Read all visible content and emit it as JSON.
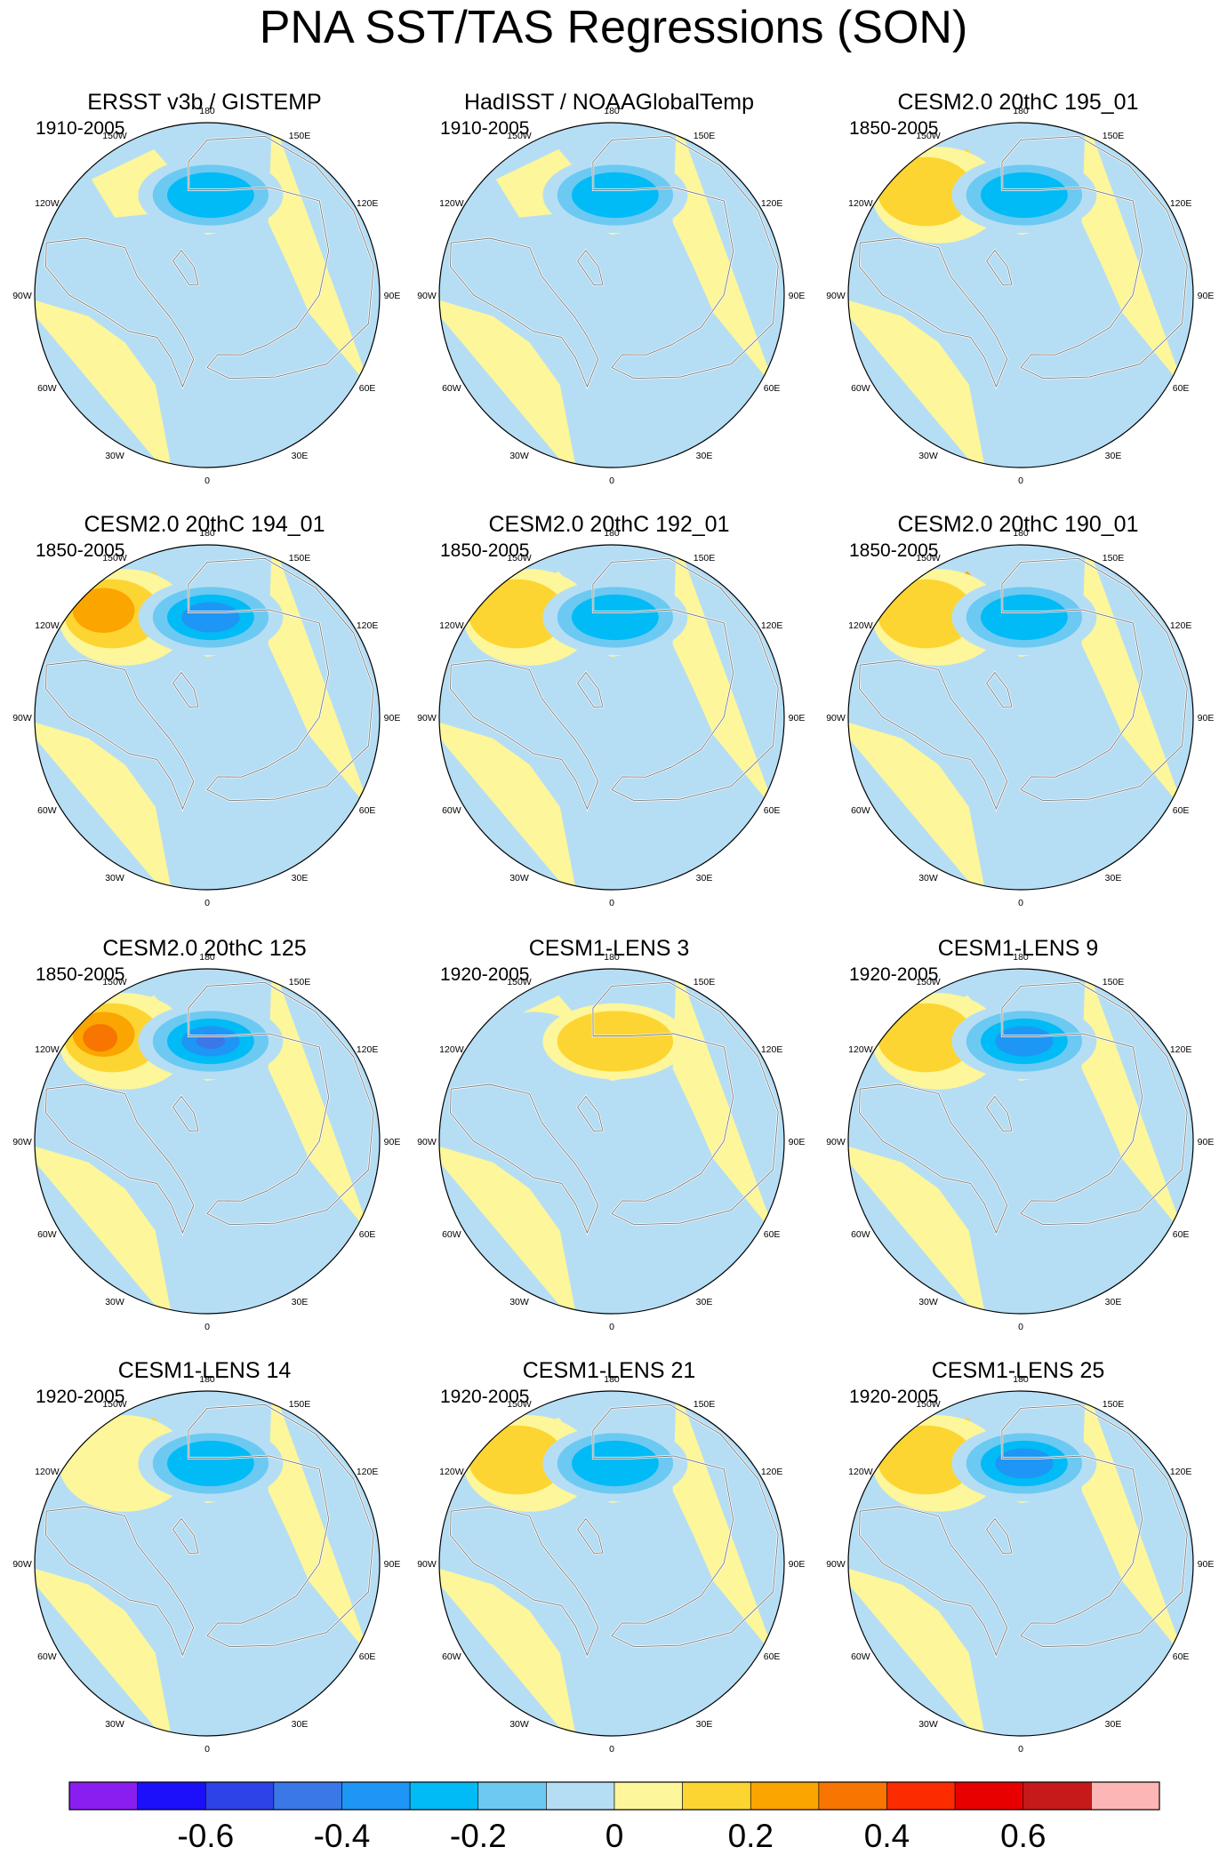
{
  "title": "PNA SST/TAS Regressions (SON)",
  "palette": [
    "#8a1ef0",
    "#1c0ffa",
    "#2d43e8",
    "#3a78e8",
    "#1e96f5",
    "#00bbf5",
    "#6cc9f2",
    "#b5def5",
    "#fdf69a",
    "#fdd532",
    "#fba500",
    "#f77500",
    "#fc2b00",
    "#e80000",
    "#c61a1a",
    "#fdb6b6"
  ],
  "colorbar_labels": [
    "-0.6",
    "-0.4",
    "-0.2",
    "0",
    "0.2",
    "0.4",
    "0.6"
  ],
  "lon_labels": [
    "180",
    "150E",
    "120E",
    "90E",
    "60E",
    "30E",
    "0",
    "30W",
    "60W",
    "90W",
    "120W",
    "150W"
  ],
  "panels": [
    {
      "title": "ERSST v3b / GISTEMP",
      "period": "1910-2005",
      "pac": -3,
      "atl": -1,
      "pac_pos": 0,
      "land": "mask"
    },
    {
      "title": "HadISST / NOAAGlobalTemp",
      "period": "1910-2005",
      "pac": -3,
      "atl": 0,
      "pac_pos": 0,
      "land": "mask"
    },
    {
      "title": "CESM2.0 20thC 195_01",
      "period": "1850-2005",
      "pac": -3,
      "atl": 2,
      "pac_pos": 2,
      "land": "field"
    },
    {
      "title": "CESM2.0 20thC 194_01",
      "period": "1850-2005",
      "pac": -4,
      "atl": 2,
      "pac_pos": 3,
      "land": "field"
    },
    {
      "title": "CESM2.0 20thC 192_01",
      "period": "1850-2005",
      "pac": -3,
      "atl": 1,
      "pac_pos": 2,
      "land": "field"
    },
    {
      "title": "CESM2.0 20thC 190_01",
      "period": "1850-2005",
      "pac": -3,
      "atl": 3,
      "pac_pos": 2,
      "land": "field"
    },
    {
      "title": "CESM2.0 20thC 125",
      "period": "1850-2005",
      "pac": -5,
      "atl": -2,
      "pac_pos": 4,
      "land": "field"
    },
    {
      "title": "CESM1-LENS 3",
      "period": "1920-2005",
      "pac": 2,
      "atl": 1,
      "pac_pos": -1,
      "land": "field"
    },
    {
      "title": "CESM1-LENS 9",
      "period": "1920-2005",
      "pac": -4,
      "atl": -1,
      "pac_pos": 2,
      "land": "field"
    },
    {
      "title": "CESM1-LENS 14",
      "period": "1920-2005",
      "pac": -3,
      "atl": 2,
      "pac_pos": 1,
      "land": "field"
    },
    {
      "title": "CESM1-LENS 21",
      "period": "1920-2005",
      "pac": -3,
      "atl": 1,
      "pac_pos": 2,
      "land": "field"
    },
    {
      "title": "CESM1-LENS 25",
      "period": "1920-2005",
      "pac": -4,
      "atl": 2,
      "pac_pos": 2,
      "land": "field"
    }
  ]
}
